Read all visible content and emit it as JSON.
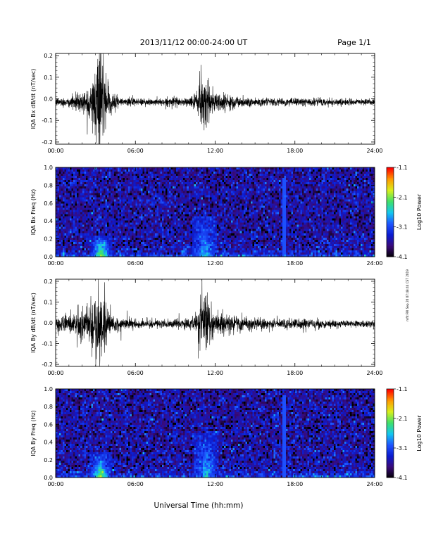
{
  "header": {
    "title": "2013/11/12  00:00-24:00 UT",
    "page": "Page 1/1"
  },
  "x_axis_label": "Universal Time (hh:mm)",
  "side_note": "mfit FRI Sep 20 07:48:44 CST 2019",
  "colors": {
    "trace": "#000000",
    "colormap": [
      "#000000",
      "#3a0a78",
      "#0b1bd0",
      "#1e54ff",
      "#13c6ef",
      "#3fe06a",
      "#d8ef1c",
      "#ff9a00",
      "#ff0000"
    ]
  },
  "chart_data": [
    {
      "type": "line",
      "ylabel": "IQA Bx dB/dt (nT/sec)",
      "xlim": [
        0,
        24
      ],
      "ylim": [
        -0.21,
        0.21
      ],
      "xtick_labels": [
        "00:00",
        "06:00",
        "12:00",
        "18:00",
        "24:00"
      ],
      "ytick_labels": [
        "0.2",
        "0.1",
        "0.0",
        "-0.1",
        "-0.2"
      ],
      "ytick_values": [
        0.2,
        0.1,
        0.0,
        -0.1,
        -0.2
      ],
      "baseline": -0.015,
      "series": [
        {
          "envelope": {
            "x": [
              0,
              1.2,
              1.5,
              2.0,
              2.6,
              3.0,
              3.2,
              3.4,
              3.6,
              3.8,
              4.2,
              5.0,
              6.0,
              8.0,
              10.0,
              10.5,
              10.8,
              11.0,
              11.3,
              11.6,
              12.0,
              12.6,
              13.4,
              14.0,
              15.0,
              16.0,
              18.0,
              20.0,
              22.0,
              24.0
            ],
            "amp": [
              0.02,
              0.03,
              0.05,
              0.06,
              0.1,
              0.18,
              0.25,
              0.25,
              0.22,
              0.12,
              0.05,
              0.025,
              0.02,
              0.02,
              0.025,
              0.04,
              0.08,
              0.15,
              0.16,
              0.1,
              0.06,
              0.05,
              0.04,
              0.03,
              0.025,
              0.02,
              0.02,
              0.02,
              0.018,
              0.018
            ]
          }
        }
      ]
    },
    {
      "type": "heatmap",
      "ylabel": "IQA Bx Freq (Hz)",
      "xlim": [
        0,
        24
      ],
      "ylim": [
        0.0,
        1.0
      ],
      "xtick_labels": [
        "00:00",
        "06:00",
        "12:00",
        "18:00",
        "24:00"
      ],
      "ytick_labels": [
        "1.0",
        "0.8",
        "0.6",
        "0.4",
        "0.2",
        "0.0"
      ],
      "ytick_values": [
        1.0,
        0.8,
        0.6,
        0.4,
        0.2,
        0.0
      ],
      "colorbar": {
        "label": "Log10 Power",
        "range": [
          -4.1,
          -1.1
        ],
        "tick_labels": [
          "-1.1",
          "-2.1",
          "-3.1",
          "-4.1"
        ],
        "tick_values": [
          -1.1,
          -2.1,
          -3.1,
          -4.1
        ]
      },
      "features": {
        "bursts": [
          {
            "t": 3.4,
            "width": 0.8,
            "fmax": 0.25,
            "power": -1.9
          },
          {
            "t": 11.2,
            "width": 0.9,
            "fmax": 0.45,
            "power": -2.6
          }
        ],
        "spike_line": {
          "t": 17.2,
          "fmax": 0.88,
          "power": -3.0
        }
      }
    },
    {
      "type": "line",
      "ylabel": "IQA By dB/dt (nT/sec)",
      "xlim": [
        0,
        24
      ],
      "ylim": [
        -0.21,
        0.21
      ],
      "xtick_labels": [
        "00:00",
        "06:00",
        "12:00",
        "18:00",
        "24:00"
      ],
      "ytick_labels": [
        "0.2",
        "0.1",
        "0.0",
        "-0.1",
        "-0.2"
      ],
      "ytick_values": [
        0.2,
        0.1,
        0.0,
        -0.1,
        -0.2
      ],
      "baseline": -0.005,
      "series": [
        {
          "envelope": {
            "x": [
              0,
              1.0,
              1.5,
              2.0,
              2.6,
              3.0,
              3.2,
              3.4,
              3.6,
              3.9,
              4.3,
              5.0,
              6.0,
              8.0,
              10.0,
              10.5,
              10.8,
              11.0,
              11.3,
              11.6,
              12.0,
              12.6,
              13.4,
              14.0,
              15.0,
              16.0,
              18.0,
              20.0,
              22.0,
              24.0
            ],
            "amp": [
              0.04,
              0.05,
              0.08,
              0.1,
              0.13,
              0.18,
              0.25,
              0.25,
              0.2,
              0.1,
              0.05,
              0.03,
              0.025,
              0.02,
              0.03,
              0.06,
              0.1,
              0.16,
              0.16,
              0.12,
              0.07,
              0.06,
              0.05,
              0.04,
              0.035,
              0.03,
              0.03,
              0.025,
              0.02,
              0.02
            ]
          }
        }
      ]
    },
    {
      "type": "heatmap",
      "ylabel": "IQA By Freq (Hz)",
      "xlim": [
        0,
        24
      ],
      "ylim": [
        0.0,
        1.0
      ],
      "xtick_labels": [
        "00:00",
        "06:00",
        "12:00",
        "18:00",
        "24:00"
      ],
      "ytick_labels": [
        "1.0",
        "0.8",
        "0.6",
        "0.4",
        "0.2",
        "0.0"
      ],
      "ytick_values": [
        1.0,
        0.8,
        0.6,
        0.4,
        0.2,
        0.0
      ],
      "colorbar": {
        "label": "Log10 Power",
        "range": [
          -4.1,
          -1.1
        ],
        "tick_labels": [
          "-1.1",
          "-2.1",
          "-3.1",
          "-4.1"
        ],
        "tick_values": [
          -1.1,
          -2.1,
          -3.1,
          -4.1
        ]
      },
      "features": {
        "bursts": [
          {
            "t": 3.4,
            "width": 0.8,
            "fmax": 0.28,
            "power": -1.9
          },
          {
            "t": 11.3,
            "width": 0.9,
            "fmax": 0.5,
            "power": -2.5
          }
        ],
        "spike_line": {
          "t": 17.2,
          "fmax": 0.92,
          "power": -3.0
        }
      }
    }
  ]
}
